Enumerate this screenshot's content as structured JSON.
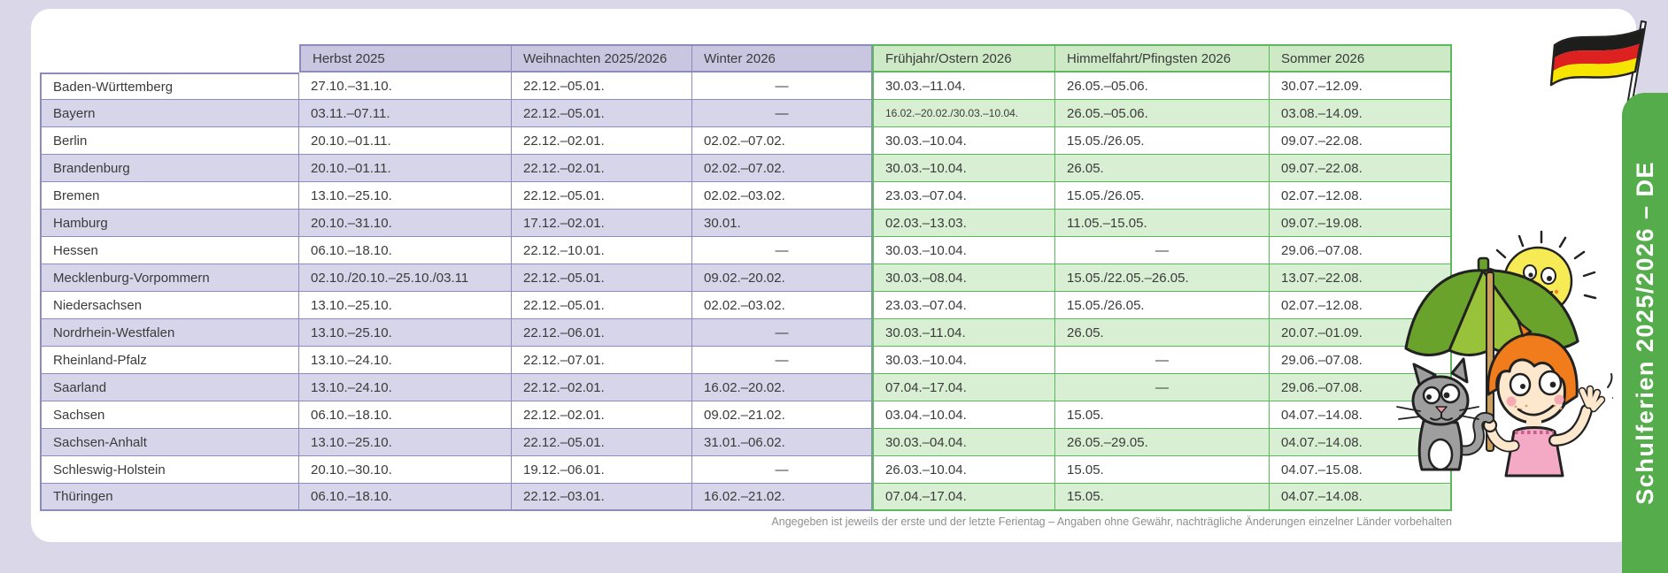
{
  "banner": {
    "label": "Schulferien 2025/2026 – DE",
    "color": "#54ac4b"
  },
  "table": {
    "columns": [
      {
        "label": "Herbst 2025",
        "section": "purple"
      },
      {
        "label": "Weihnachten 2025/2026",
        "section": "purple"
      },
      {
        "label": "Winter 2026",
        "section": "purple"
      },
      {
        "label": "Frühjahr/Ostern 2026",
        "section": "green"
      },
      {
        "label": "Himmelfahrt/Pfingsten 2026",
        "section": "green"
      },
      {
        "label": "Sommer 2026",
        "section": "green"
      }
    ],
    "rows": [
      {
        "state": "Baden-Württemberg",
        "values": [
          "27.10.–31.10.",
          "22.12.–05.01.",
          "—",
          "30.03.–11.04.",
          "26.05.–05.06.",
          "30.07.–12.09."
        ]
      },
      {
        "state": "Bayern",
        "values": [
          "03.11.–07.11.",
          "22.12.–05.01.",
          "—",
          "16.02.–20.02./30.03.–10.04.",
          "26.05.–05.06.",
          "03.08.–14.09."
        ],
        "small_cols": [
          3
        ]
      },
      {
        "state": "Berlin",
        "values": [
          "20.10.–01.11.",
          "22.12.–02.01.",
          "02.02.–07.02.",
          "30.03.–10.04.",
          "15.05./26.05.",
          "09.07.–22.08."
        ]
      },
      {
        "state": "Brandenburg",
        "values": [
          "20.10.–01.11.",
          "22.12.–02.01.",
          "02.02.–07.02.",
          "30.03.–10.04.",
          "26.05.",
          "09.07.–22.08."
        ]
      },
      {
        "state": "Bremen",
        "values": [
          "13.10.–25.10.",
          "22.12.–05.01.",
          "02.02.–03.02.",
          "23.03.–07.04.",
          "15.05./26.05.",
          "02.07.–12.08."
        ]
      },
      {
        "state": "Hamburg",
        "values": [
          "20.10.–31.10.",
          "17.12.–02.01.",
          "30.01.",
          "02.03.–13.03.",
          "11.05.–15.05.",
          "09.07.–19.08."
        ]
      },
      {
        "state": "Hessen",
        "values": [
          "06.10.–18.10.",
          "22.12.–10.01.",
          "—",
          "30.03.–10.04.",
          "—",
          "29.06.–07.08."
        ]
      },
      {
        "state": "Mecklenburg-Vorpommern",
        "values": [
          "02.10./20.10.–25.10./03.11",
          "22.12.–05.01.",
          "09.02.–20.02.",
          "30.03.–08.04.",
          "15.05./22.05.–26.05.",
          "13.07.–22.08."
        ]
      },
      {
        "state": "Niedersachsen",
        "values": [
          "13.10.–25.10.",
          "22.12.–05.01.",
          "02.02.–03.02.",
          "23.03.–07.04.",
          "15.05./26.05.",
          "02.07.–12.08."
        ]
      },
      {
        "state": "Nordrhein-Westfalen",
        "values": [
          "13.10.–25.10.",
          "22.12.–06.01.",
          "—",
          "30.03.–11.04.",
          "26.05.",
          "20.07.–01.09."
        ]
      },
      {
        "state": "Rheinland-Pfalz",
        "values": [
          "13.10.–24.10.",
          "22.12.–07.01.",
          "—",
          "30.03.–10.04.",
          "—",
          "29.06.–07.08."
        ]
      },
      {
        "state": "Saarland",
        "values": [
          "13.10.–24.10.",
          "22.12.–02.01.",
          "16.02.–20.02.",
          "07.04.–17.04.",
          "—",
          "29.06.–07.08."
        ]
      },
      {
        "state": "Sachsen",
        "values": [
          "06.10.–18.10.",
          "22.12.–02.01.",
          "09.02.–21.02.",
          "03.04.–10.04.",
          "15.05.",
          "04.07.–14.08."
        ]
      },
      {
        "state": "Sachsen-Anhalt",
        "values": [
          "13.10.–25.10.",
          "22.12.–05.01.",
          "31.01.–06.02.",
          "30.03.–04.04.",
          "26.05.–29.05.",
          "04.07.–14.08."
        ]
      },
      {
        "state": "Schleswig-Holstein",
        "values": [
          "20.10.–30.10.",
          "19.12.–06.01.",
          "—",
          "26.03.–10.04.",
          "15.05.",
          "04.07.–15.08."
        ]
      },
      {
        "state": "Thüringen",
        "values": [
          "06.10.–18.10.",
          "22.12.–03.01.",
          "16.02.–21.02.",
          "07.04.–17.04.",
          "15.05.",
          "04.07.–14.08."
        ]
      }
    ],
    "footnote": "Angegeben ist jeweils der erste und der letzte Ferientag – Angaben ohne Gewähr, nachträgliche Änderungen einzelner Länder vorbehalten"
  },
  "decorations": {
    "flag_icon": "german-flag",
    "scene_icons": [
      "sun",
      "umbrella",
      "girl-waving",
      "cat"
    ]
  },
  "colors": {
    "background": "#d9d7e8",
    "card": "#ffffff",
    "purple_header": "#c9c6e2",
    "purple_row": "#d7d5ea",
    "purple_border": "#8d8abc",
    "green_header": "#cde9c6",
    "green_row": "#d9efd3",
    "green_border": "#5db75c",
    "banner_green": "#54ac4b",
    "text": "#3b3b3b",
    "footnote_text": "#8f8f8f"
  }
}
